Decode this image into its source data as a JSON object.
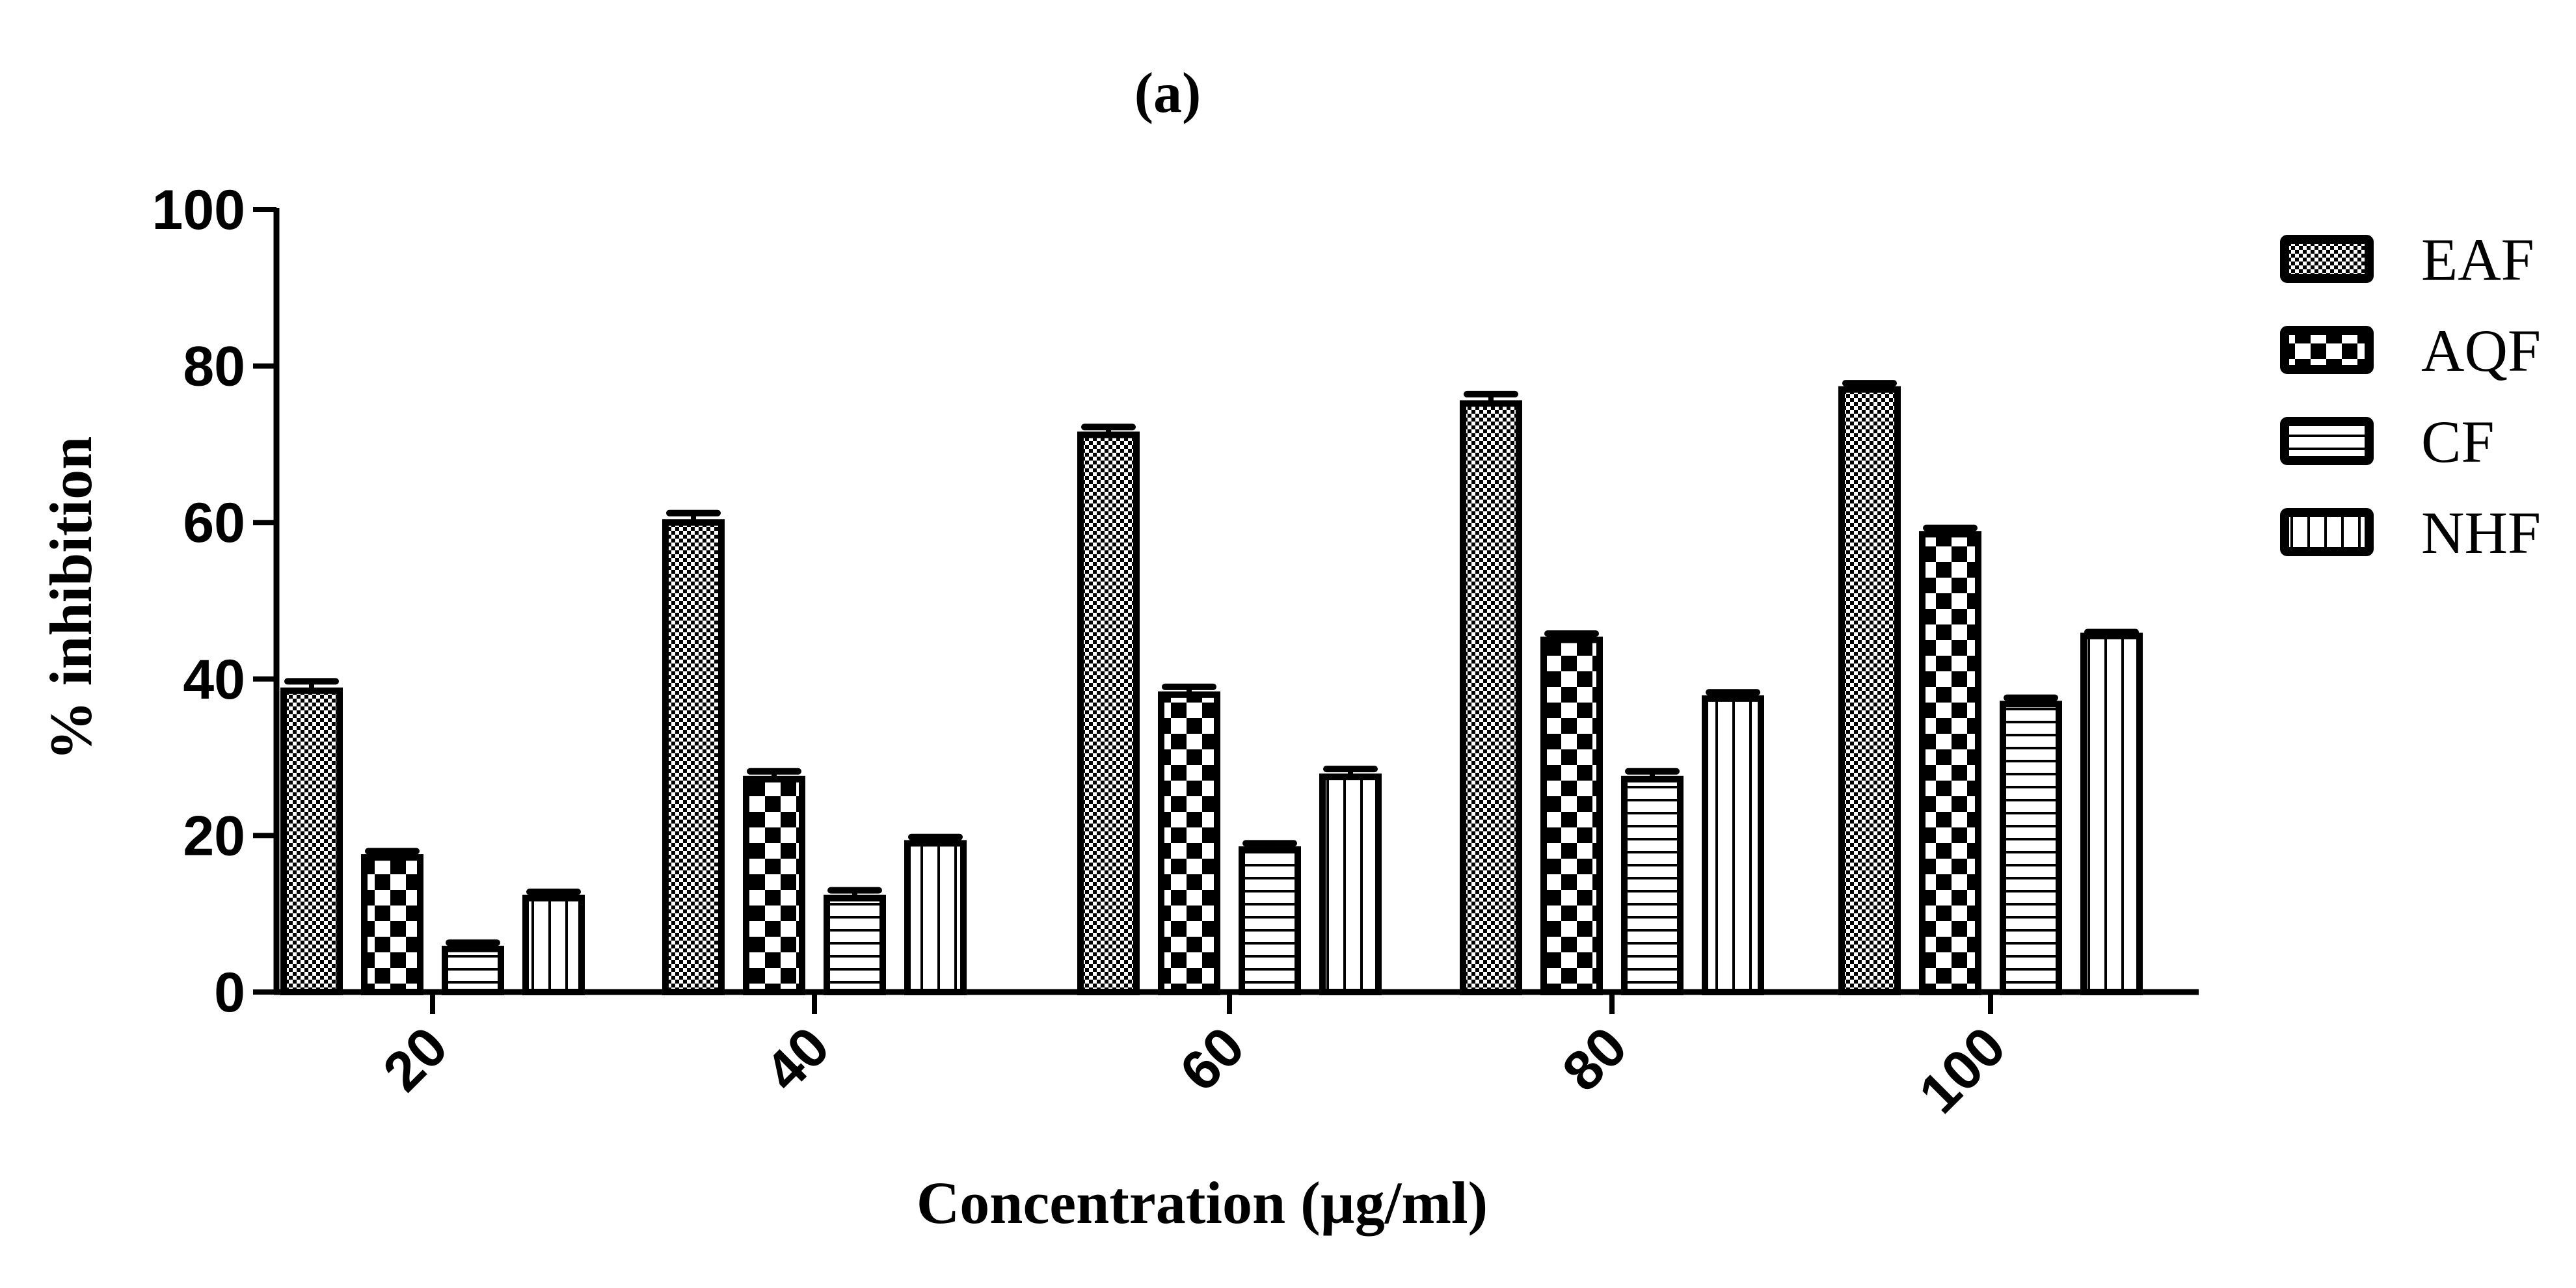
{
  "chart_data": {
    "type": "bar",
    "title": "(a)",
    "xlabel": "Concentration (µg/ml)",
    "ylabel": "% inhibition",
    "categories": [
      "20",
      "40",
      "60",
      "80",
      "100"
    ],
    "ylim": [
      0,
      100
    ],
    "yticks": [
      "0",
      "20",
      "40",
      "60",
      "80",
      "100"
    ],
    "legend_position": "right",
    "error_bars": true,
    "series": [
      {
        "name": "EAF",
        "pattern": "fine-checker",
        "values": [
          38.5,
          60.0,
          71.2,
          75.2,
          77.0
        ],
        "errors": [
          1.2,
          1.2,
          1.0,
          1.2,
          0.8
        ]
      },
      {
        "name": "AQF",
        "pattern": "large-checker",
        "values": [
          17.2,
          27.2,
          38.0,
          45.0,
          58.5
        ],
        "errors": [
          0.8,
          1.0,
          1.0,
          0.8,
          0.8
        ]
      },
      {
        "name": "CF",
        "pattern": "horizontal-lines",
        "values": [
          5.5,
          12.0,
          18.2,
          27.2,
          36.8
        ],
        "errors": [
          0.8,
          1.0,
          0.8,
          1.0,
          0.8
        ]
      },
      {
        "name": "NHF",
        "pattern": "vertical-lines",
        "values": [
          12.0,
          19.0,
          27.5,
          37.5,
          45.5
        ],
        "errors": [
          0.8,
          0.8,
          1.0,
          0.8,
          0.5
        ]
      }
    ],
    "colors": {
      "ink": "#000000",
      "fill": "#ffffff"
    }
  }
}
